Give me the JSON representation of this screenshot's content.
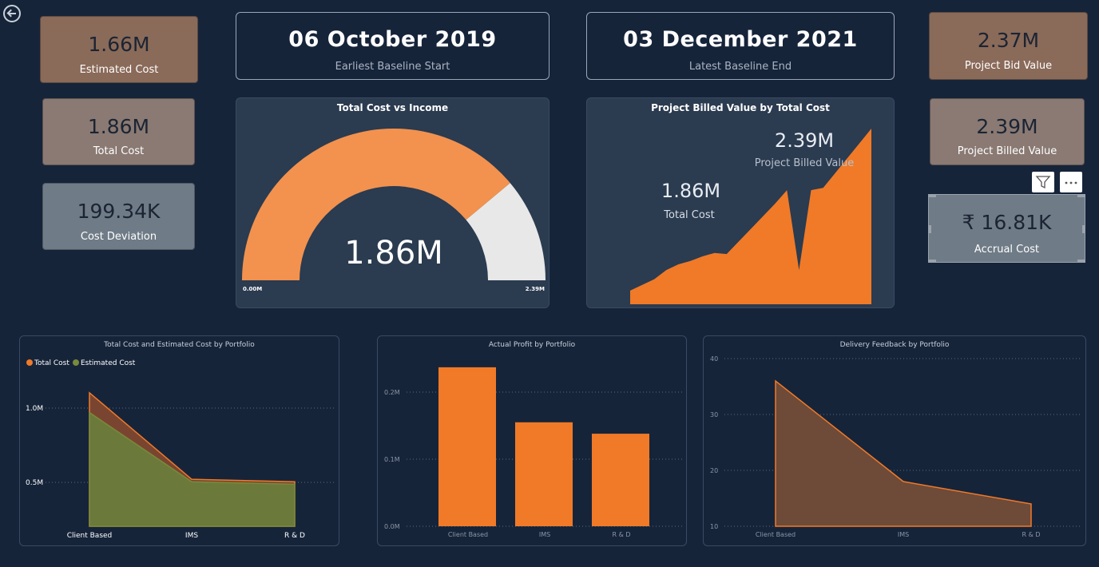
{
  "kpis": {
    "estimated_cost": {
      "value": "1.66M",
      "label": "Estimated Cost"
    },
    "total_cost": {
      "value": "1.86M",
      "label": "Total Cost"
    },
    "cost_deviation": {
      "value": "199.34K",
      "label": "Cost Deviation"
    },
    "project_bid_value": {
      "value": "2.37M",
      "label": "Project Bid Value"
    },
    "project_billed_value": {
      "value": "2.39M",
      "label": "Project Billed Value"
    },
    "accrual_cost": {
      "value": "₹ 16.81K",
      "label": "Accrual Cost"
    }
  },
  "dates": {
    "earliest": {
      "value": "06 October 2019",
      "label": "Earliest Baseline Start"
    },
    "latest": {
      "value": "03 December 2021",
      "label": "Latest Baseline End"
    }
  },
  "colors": {
    "orange": "#f07a27",
    "gauge_fill": "#f2924e",
    "gauge_track": "#e8e8e8",
    "olive": "#6b7a3a",
    "brown_area": "#6e4a38"
  },
  "icons": {
    "back": "back-arrow-icon",
    "filter": "filter-icon",
    "more": "more-options-icon"
  },
  "gauge": {
    "title": "Total Cost  vs Income",
    "value": 1.86,
    "min": 0,
    "max": 2.39,
    "value_label": "1.86M",
    "min_label": "0.00M",
    "max_label": "2.39M"
  },
  "billed_area": {
    "title": "Project Billed Value by Total Cost",
    "billed_value": "2.39M",
    "billed_label": "Project Billed Value",
    "total_value": "1.86M",
    "total_label": "Total Cost",
    "values": [
      0.12,
      0.17,
      0.22,
      0.3,
      0.35,
      0.38,
      0.42,
      0.45,
      0.44,
      0.55,
      0.66,
      0.77,
      0.88,
      1.0,
      0.3,
      1.0,
      1.02,
      1.15,
      1.28,
      1.41,
      1.54
    ]
  },
  "chart_data": [
    {
      "type": "area",
      "title": "Total Cost  and Estimated Cost by Portfolio",
      "categories": [
        "Client Based",
        "IMS",
        "R & D"
      ],
      "series": [
        {
          "name": "Total Cost",
          "values": [
            1080000,
            380000,
            360000
          ]
        },
        {
          "name": "Estimated Cost",
          "values": [
            920000,
            360000,
            340000
          ]
        }
      ],
      "yticks": [
        "0.5M",
        "1.0M"
      ],
      "ylim": [
        0,
        1150000
      ],
      "legend": "top-left"
    },
    {
      "type": "bar",
      "title": "Actual Profit by Portfolio",
      "categories": [
        "Client Based",
        "IMS",
        "R & D"
      ],
      "values": [
        237000,
        155000,
        138000
      ],
      "yticks": [
        "0.0M",
        "0.1M",
        "0.2M"
      ],
      "ylim": [
        0,
        250000
      ]
    },
    {
      "type": "area",
      "title": "Delivery Feedback by Portfolio",
      "categories": [
        "Client Based",
        "IMS",
        "R & D"
      ],
      "values": [
        36,
        18,
        14
      ],
      "yticks": [
        "10",
        "20",
        "30",
        "40"
      ],
      "ylim": [
        10,
        42
      ]
    }
  ]
}
